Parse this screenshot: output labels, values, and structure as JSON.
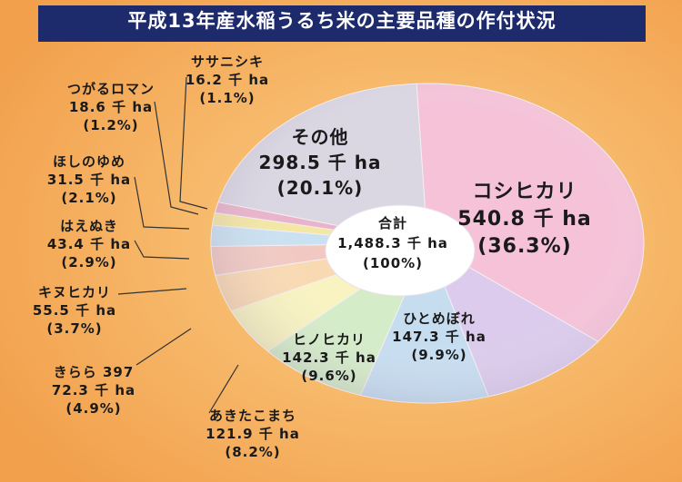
{
  "chart_data": {
    "type": "pie",
    "title": "平成13年産水稲うるち米の主要品種の作付状況",
    "categories": [
      "コシヒカリ",
      "ひとめぼれ",
      "ヒノヒカリ",
      "あきたこまち",
      "きらら 397",
      "キヌヒカリ",
      "はえぬき",
      "ほしのゆめ",
      "つがるロマン",
      "ササニシキ",
      "その他"
    ],
    "values": [
      540.8,
      147.3,
      142.3,
      121.9,
      72.3,
      55.5,
      43.4,
      31.5,
      18.6,
      16.2,
      298.5
    ],
    "value_labels": [
      "540.8 千 ha",
      "147.3 千 ha",
      "142.3 千 ha",
      "121.9 千 ha",
      "72.3 千 ha",
      "55.5 千 ha",
      "43.4 千 ha",
      "31.5 千 ha",
      "18.6 千 ha",
      "16.2 千 ha",
      "298.5 千 ha"
    ],
    "shares": [
      36.3,
      9.9,
      9.6,
      8.2,
      4.9,
      3.7,
      2.9,
      2.1,
      1.2,
      1.1,
      20.1
    ],
    "share_labels": [
      "(36.3%)",
      "(9.9%)",
      "(9.6%)",
      "(8.2%)",
      "(4.9%)",
      "(3.7%)",
      "(2.9%)",
      "(2.1%)",
      "(1.2%)",
      "(1.1%)",
      "(20.1%)"
    ],
    "colors": [
      "#f5c2d8",
      "#dccbec",
      "#c6ddf0",
      "#d4ecc8",
      "#f8f3c0",
      "#f9d9b2",
      "#f1c9c2",
      "#c9e1f1",
      "#f3e7a2",
      "#e9b3ca",
      "#dad6e2"
    ],
    "total": {
      "label": "合計",
      "value": 1488.3,
      "value_label": "1,488.3 千 ha",
      "share": 100,
      "share_label": "(100%)"
    }
  }
}
